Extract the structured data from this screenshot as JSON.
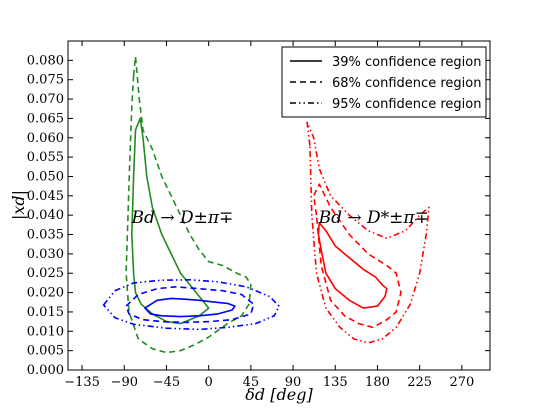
{
  "chart_data": {
    "type": "line",
    "xlabel": "δd [deg]",
    "ylabel": "|xd|",
    "xlim": [
      -150,
      300
    ],
    "ylim": [
      0,
      0.085
    ],
    "xticks": [
      -135,
      -90,
      -45,
      0,
      45,
      90,
      135,
      180,
      225,
      270
    ],
    "xtick_labels": [
      "−135",
      "−90",
      "−45",
      "0",
      "45",
      "90",
      "135",
      "180",
      "225",
      "270"
    ],
    "yticks": [
      0,
      0.005,
      0.01,
      0.015,
      0.02,
      0.025,
      0.03,
      0.035,
      0.04,
      0.045,
      0.05,
      0.055,
      0.06,
      0.065,
      0.07,
      0.075,
      0.08
    ],
    "ytick_labels": [
      "0.000",
      "0.005",
      "0.010",
      "0.015",
      "0.020",
      "0.025",
      "0.030",
      "0.035",
      "0.040",
      "0.045",
      "0.050",
      "0.055",
      "0.060",
      "0.065",
      "0.070",
      "0.075",
      "0.080"
    ],
    "grid": false,
    "legend_position": "top-right",
    "legend": [
      {
        "label": "39% confidence region",
        "style": "solid"
      },
      {
        "label": "68% confidence region",
        "style": "dashed"
      },
      {
        "label": "95% confidence region",
        "style": "dashdotdot"
      }
    ],
    "annotations": [
      {
        "text": "Bd → D±π∓",
        "x": -28,
        "y": 0.038
      },
      {
        "text": "Bd → D*±π∓",
        "x": 176,
        "y": 0.038
      }
    ],
    "series": [
      {
        "group": "green",
        "level": "39%",
        "color": "#228b22",
        "style": "solid",
        "closed": true,
        "x": [
          -78,
          -73,
          -70,
          -66,
          -60,
          -50,
          -40,
          -30,
          -20,
          -10,
          0,
          -10,
          -20,
          -30,
          -45,
          -60,
          -72,
          -78,
          -80,
          -82,
          -80,
          -78
        ],
        "y": [
          0.062,
          0.065,
          0.06,
          0.05,
          0.042,
          0.035,
          0.03,
          0.025,
          0.022,
          0.019,
          0.016,
          0.014,
          0.013,
          0.012,
          0.0125,
          0.0145,
          0.017,
          0.02,
          0.025,
          0.035,
          0.05,
          0.062
        ]
      },
      {
        "group": "green",
        "level": "68%",
        "color": "#228b22",
        "style": "dashed",
        "closed": true,
        "x": [
          -80,
          -78,
          -74,
          -70,
          -60,
          -50,
          -40,
          -30,
          -20,
          -10,
          0,
          15,
          30,
          40,
          45,
          43,
          35,
          20,
          0,
          -15,
          -30,
          -45,
          -60,
          -75,
          -85,
          -88,
          -86,
          -84,
          -82,
          -80
        ],
        "y": [
          0.076,
          0.081,
          0.07,
          0.062,
          0.057,
          0.05,
          0.045,
          0.04,
          0.035,
          0.031,
          0.028,
          0.027,
          0.025,
          0.024,
          0.022,
          0.017,
          0.014,
          0.012,
          0.0085,
          0.0065,
          0.005,
          0.0045,
          0.0055,
          0.008,
          0.015,
          0.025,
          0.04,
          0.055,
          0.068,
          0.076
        ]
      },
      {
        "group": "blue",
        "level": "39%",
        "color": "#0000ff",
        "style": "solid",
        "closed": true,
        "x": [
          -68,
          -55,
          -40,
          -25,
          -10,
          5,
          20,
          28,
          25,
          10,
          -10,
          -30,
          -50,
          -62,
          -68
        ],
        "y": [
          0.016,
          0.018,
          0.0185,
          0.0183,
          0.018,
          0.0176,
          0.0172,
          0.0165,
          0.0155,
          0.0145,
          0.014,
          0.0138,
          0.014,
          0.0145,
          0.016
        ]
      },
      {
        "group": "blue",
        "level": "68%",
        "color": "#0000ff",
        "style": "dashed",
        "closed": true,
        "x": [
          -88,
          -75,
          -55,
          -35,
          -10,
          15,
          35,
          48,
          45,
          25,
          0,
          -25,
          -50,
          -70,
          -85,
          -88
        ],
        "y": [
          0.0165,
          0.0195,
          0.021,
          0.0215,
          0.021,
          0.0205,
          0.0195,
          0.017,
          0.0145,
          0.013,
          0.0125,
          0.0123,
          0.0125,
          0.013,
          0.0145,
          0.0165
        ]
      },
      {
        "group": "blue",
        "level": "95%",
        "color": "#0000ff",
        "style": "dashdotdot",
        "closed": true,
        "x": [
          -112,
          -100,
          -80,
          -50,
          -20,
          10,
          40,
          65,
          75,
          70,
          50,
          20,
          -10,
          -45,
          -80,
          -100,
          -112
        ],
        "y": [
          0.0168,
          0.0205,
          0.0225,
          0.0232,
          0.0233,
          0.0228,
          0.0215,
          0.019,
          0.0165,
          0.014,
          0.012,
          0.011,
          0.0105,
          0.0108,
          0.0118,
          0.0135,
          0.0168
        ]
      },
      {
        "group": "red",
        "level": "39%",
        "color": "#ff0000",
        "style": "solid",
        "closed": true,
        "x": [
          120,
          117,
          118,
          125,
          135,
          150,
          165,
          178,
          185,
          190,
          188,
          180,
          165,
          150,
          135,
          125,
          120
        ],
        "y": [
          0.031,
          0.035,
          0.038,
          0.036,
          0.032,
          0.029,
          0.026,
          0.024,
          0.022,
          0.021,
          0.019,
          0.0165,
          0.016,
          0.018,
          0.021,
          0.025,
          0.031
        ]
      },
      {
        "group": "red",
        "level": "68%",
        "color": "#ff0000",
        "style": "dashed",
        "closed": true,
        "x": [
          115,
          112,
          118,
          130,
          150,
          170,
          190,
          200,
          205,
          200,
          190,
          175,
          160,
          145,
          130,
          120,
          115
        ],
        "y": [
          0.04,
          0.045,
          0.048,
          0.042,
          0.035,
          0.03,
          0.027,
          0.025,
          0.02,
          0.015,
          0.013,
          0.011,
          0.012,
          0.014,
          0.018,
          0.027,
          0.04
        ]
      },
      {
        "group": "red",
        "level": "95%",
        "color": "#ff0000",
        "style": "dashdotdot",
        "closed": true,
        "x": [
          108,
          105,
          112,
          118,
          130,
          150,
          170,
          190,
          210,
          225,
          235,
          232,
          225,
          215,
          200,
          185,
          170,
          155,
          140,
          125,
          115,
          110,
          108
        ],
        "y": [
          0.058,
          0.064,
          0.06,
          0.052,
          0.045,
          0.04,
          0.036,
          0.034,
          0.036,
          0.04,
          0.042,
          0.035,
          0.025,
          0.017,
          0.011,
          0.008,
          0.007,
          0.008,
          0.011,
          0.016,
          0.025,
          0.04,
          0.058
        ]
      }
    ]
  }
}
